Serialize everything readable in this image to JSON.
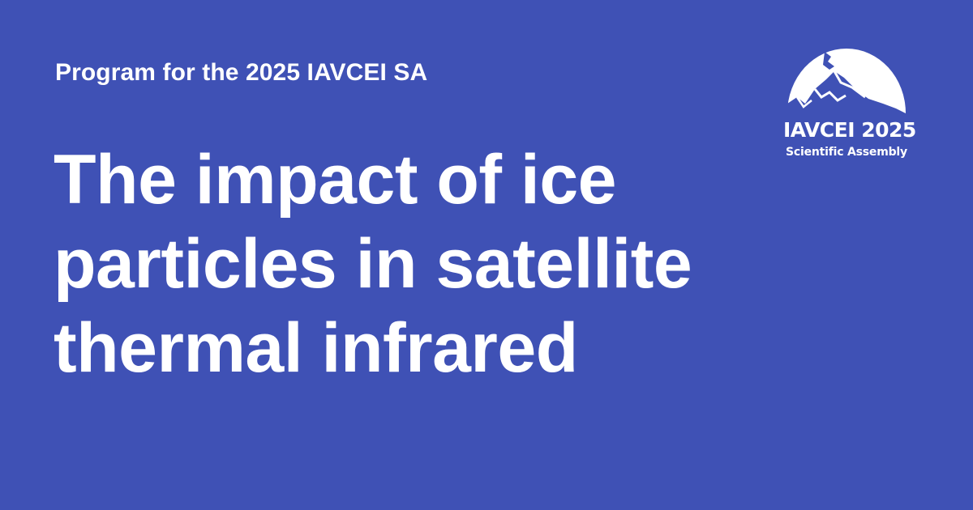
{
  "kicker": "Program for the 2025 IAVCEI SA",
  "headline": {
    "lines": [
      "The impact of ice",
      "particles in satellite",
      "thermal infrared"
    ]
  },
  "logo": {
    "title": "IAVCEI 2025",
    "subtitle": "Scientific Assembly",
    "icon": "volcano-mountain-icon"
  },
  "colors": {
    "background": "#3f51b5",
    "text": "#ffffff"
  }
}
